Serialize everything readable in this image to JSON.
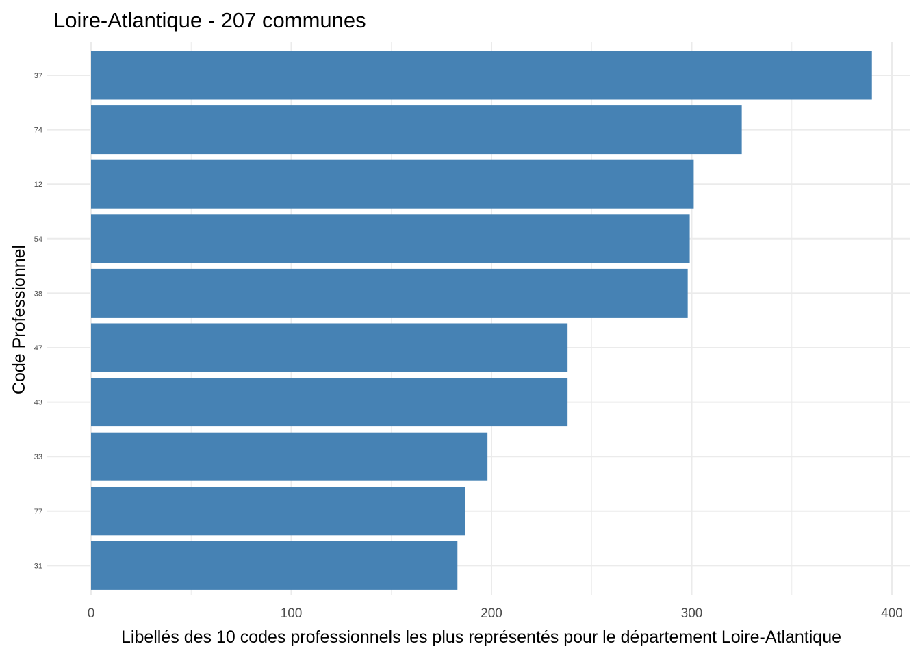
{
  "chart_data": {
    "type": "bar",
    "orientation": "horizontal",
    "title": "Loire-Atlantique - 207 communes",
    "xlabel": "Libellés des 10 codes professionnels les plus représentés pour le département Loire-Atlantique",
    "ylabel": "Code Professionnel",
    "categories": [
      "37",
      "74",
      "12",
      "54",
      "38",
      "47",
      "43",
      "33",
      "77",
      "31"
    ],
    "values": [
      390,
      325,
      301,
      299,
      298,
      238,
      238,
      198,
      187,
      183
    ],
    "xlim": [
      0,
      400
    ],
    "xticks": [
      0,
      100,
      200,
      300,
      400
    ],
    "grid": true,
    "bar_color": "#4682B4",
    "grid_color": "#EBEBEB"
  }
}
